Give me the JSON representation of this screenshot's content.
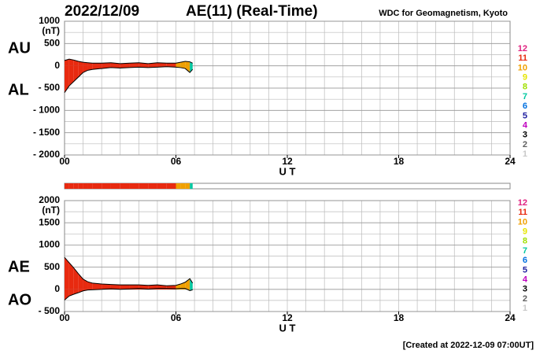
{
  "header": {
    "date": "2022/12/09",
    "title": "AE(11) (Real-Time)",
    "source": "WDC for Geomagnetism, Kyoto"
  },
  "footer": "[Created at 2022-12-09 07:00UT]",
  "levels": [
    {
      "label": "12",
      "color": "#e0207f"
    },
    {
      "label": "11",
      "color": "#e82a10"
    },
    {
      "label": "10",
      "color": "#f0a000"
    },
    {
      "label": "9",
      "color": "#e6e600"
    },
    {
      "label": "8",
      "color": "#a0e000"
    },
    {
      "label": "7",
      "color": "#00c8a0"
    },
    {
      "label": "6",
      "color": "#0070e0"
    },
    {
      "label": "5",
      "color": "#2020a0"
    },
    {
      "label": "4",
      "color": "#c000c0"
    },
    {
      "label": "3",
      "color": "#000000"
    },
    {
      "label": "2",
      "color": "#606060"
    },
    {
      "label": "1",
      "color": "#c8c8c8"
    }
  ],
  "chart_data": [
    {
      "type": "area",
      "unit": "(nT)",
      "xlabel": "U T",
      "x": [
        0,
        0.25,
        0.5,
        0.75,
        1,
        1.25,
        1.5,
        2,
        2.5,
        3,
        3.5,
        4,
        4.5,
        5,
        5.5,
        6,
        6.25,
        6.5,
        6.75,
        6.9
      ],
      "station_counts": [
        11,
        11,
        11,
        11,
        11,
        11,
        11,
        11,
        11,
        11,
        11,
        11,
        11,
        11,
        11,
        10,
        10,
        10,
        7,
        7
      ],
      "series": [
        {
          "name": "AU",
          "values": [
            120,
            150,
            130,
            100,
            80,
            70,
            60,
            60,
            70,
            50,
            60,
            70,
            50,
            70,
            60,
            60,
            80,
            100,
            90,
            60
          ]
        },
        {
          "name": "AL",
          "values": [
            -600,
            -450,
            -350,
            -250,
            -150,
            -100,
            -80,
            -60,
            -40,
            -50,
            -40,
            -30,
            -40,
            -30,
            -20,
            -30,
            -40,
            -60,
            -150,
            -80
          ]
        }
      ],
      "xlim": [
        0,
        24
      ],
      "xticks": [
        {
          "value": 0,
          "label": "00"
        },
        {
          "value": 6,
          "label": "06"
        },
        12,
        18,
        24
      ],
      "ylim": [
        -2000,
        1000
      ],
      "yticks": [
        1000,
        500,
        0,
        {
          "value": -500,
          "label": "- 500"
        },
        {
          "value": -1000,
          "label": "- 1000"
        },
        {
          "value": -1500,
          "label": "- 1500"
        },
        {
          "value": -2000,
          "label": "- 2000"
        }
      ],
      "grid_step": 250,
      "xgrid_step": 1
    },
    {
      "type": "area",
      "unit": "(nT)",
      "xlabel": "U T",
      "x": [
        0,
        0.25,
        0.5,
        0.75,
        1,
        1.25,
        1.5,
        2,
        2.5,
        3,
        3.5,
        4,
        4.5,
        5,
        5.5,
        6,
        6.25,
        6.5,
        6.75,
        6.9
      ],
      "station_counts": [
        11,
        11,
        11,
        11,
        11,
        11,
        11,
        11,
        11,
        11,
        11,
        11,
        11,
        11,
        11,
        10,
        10,
        10,
        7,
        7
      ],
      "series": [
        {
          "name": "AE",
          "values": [
            720,
            600,
            480,
            350,
            230,
            170,
            140,
            120,
            110,
            100,
            100,
            100,
            90,
            100,
            80,
            90,
            120,
            160,
            240,
            140
          ]
        },
        {
          "name": "AO",
          "values": [
            -240,
            -150,
            -110,
            -75,
            -35,
            -15,
            -10,
            0,
            15,
            0,
            10,
            20,
            5,
            20,
            20,
            15,
            20,
            20,
            -30,
            -10
          ]
        }
      ],
      "xlim": [
        0,
        24
      ],
      "xticks": [
        {
          "value": 0,
          "label": "00"
        },
        {
          "value": 6,
          "label": "06"
        },
        12,
        18,
        24
      ],
      "ylim": [
        -500,
        2000
      ],
      "yticks": [
        2000,
        1500,
        1000,
        500,
        0,
        {
          "value": -500,
          "label": "- 500"
        }
      ],
      "grid_step": 250,
      "xgrid_step": 1
    }
  ]
}
